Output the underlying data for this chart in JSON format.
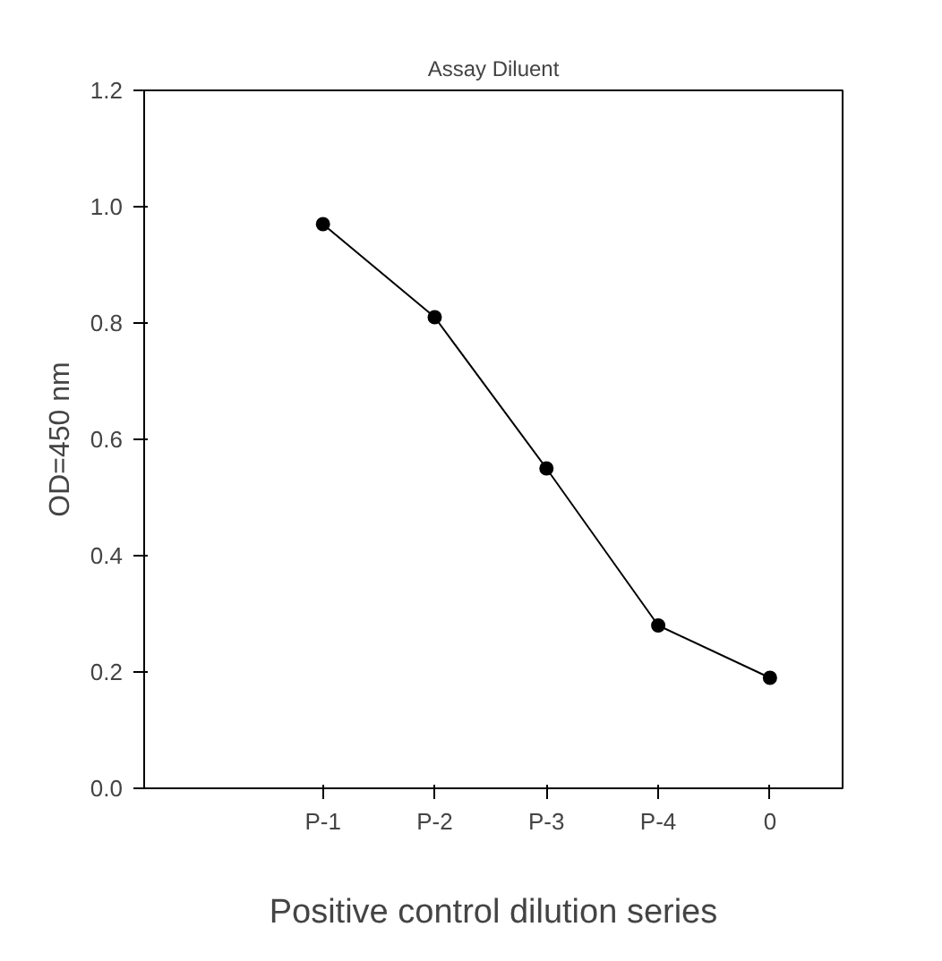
{
  "chart_data": {
    "type": "line",
    "title": "Assay Diluent",
    "xlabel": "Positive control dilution series",
    "ylabel": "OD=450 nm",
    "categories": [
      "P-1",
      "P-2",
      "P-3",
      "P-4",
      "0"
    ],
    "series": [
      {
        "color": "#000000",
        "values": [
          0.97,
          0.81,
          0.55,
          0.28,
          0.19
        ]
      }
    ],
    "ylim": [
      0,
      1.2
    ],
    "yticks": [
      {
        "value": 0,
        "label": "0.0"
      },
      {
        "value": 0.2,
        "label": "0.2"
      },
      {
        "value": 0.4,
        "label": "0.4"
      },
      {
        "value": 0.6,
        "label": "0.6"
      },
      {
        "value": 0.8,
        "label": "0.8"
      },
      {
        "value": 1.0,
        "label": "1.0"
      },
      {
        "value": 1.2,
        "label": "1.2"
      }
    ],
    "grid": false,
    "marker": "circle",
    "line_style": "solid"
  }
}
